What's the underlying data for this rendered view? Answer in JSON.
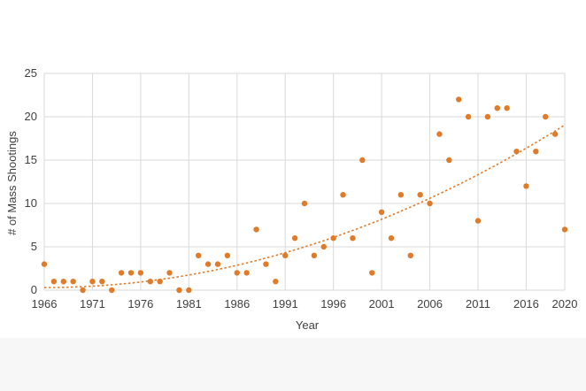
{
  "chart_data": {
    "type": "scatter",
    "title": "",
    "xlabel": "Year",
    "ylabel": "# of Mass Shootings",
    "xlim": [
      1966,
      2020
    ],
    "ylim": [
      0,
      25
    ],
    "x_ticks": [
      1966,
      1971,
      1976,
      1981,
      1986,
      1991,
      1996,
      2001,
      2006,
      2011,
      2016,
      2020
    ],
    "y_ticks": [
      0,
      5,
      10,
      15,
      20,
      25
    ],
    "grid": true,
    "legend": "none",
    "point_color": "#e07b2a",
    "trendline": {
      "type": "polynomial",
      "style": "dotted",
      "color": "#e07b2a",
      "coefficients": [
        0.3,
        0.0,
        0.00643
      ]
    },
    "points": [
      {
        "x": 1966,
        "y": 3
      },
      {
        "x": 1967,
        "y": 1
      },
      {
        "x": 1968,
        "y": 1
      },
      {
        "x": 1969,
        "y": 1
      },
      {
        "x": 1970,
        "y": 0
      },
      {
        "x": 1971,
        "y": 1
      },
      {
        "x": 1972,
        "y": 1
      },
      {
        "x": 1973,
        "y": 0
      },
      {
        "x": 1974,
        "y": 2
      },
      {
        "x": 1975,
        "y": 2
      },
      {
        "x": 1976,
        "y": 2
      },
      {
        "x": 1977,
        "y": 1
      },
      {
        "x": 1978,
        "y": 1
      },
      {
        "x": 1979,
        "y": 2
      },
      {
        "x": 1980,
        "y": 0
      },
      {
        "x": 1981,
        "y": 0
      },
      {
        "x": 1982,
        "y": 4
      },
      {
        "x": 1983,
        "y": 3
      },
      {
        "x": 1984,
        "y": 3
      },
      {
        "x": 1985,
        "y": 4
      },
      {
        "x": 1986,
        "y": 2
      },
      {
        "x": 1987,
        "y": 2
      },
      {
        "x": 1988,
        "y": 7
      },
      {
        "x": 1989,
        "y": 3
      },
      {
        "x": 1990,
        "y": 1
      },
      {
        "x": 1991,
        "y": 4
      },
      {
        "x": 1992,
        "y": 6
      },
      {
        "x": 1993,
        "y": 10
      },
      {
        "x": 1994,
        "y": 4
      },
      {
        "x": 1995,
        "y": 5
      },
      {
        "x": 1996,
        "y": 6
      },
      {
        "x": 1997,
        "y": 11
      },
      {
        "x": 1998,
        "y": 6
      },
      {
        "x": 1999,
        "y": 15
      },
      {
        "x": 2000,
        "y": 2
      },
      {
        "x": 2001,
        "y": 9
      },
      {
        "x": 2002,
        "y": 6
      },
      {
        "x": 2003,
        "y": 11
      },
      {
        "x": 2004,
        "y": 4
      },
      {
        "x": 2005,
        "y": 11
      },
      {
        "x": 2006,
        "y": 10
      },
      {
        "x": 2007,
        "y": 18
      },
      {
        "x": 2008,
        "y": 15
      },
      {
        "x": 2009,
        "y": 22
      },
      {
        "x": 2010,
        "y": 20
      },
      {
        "x": 2011,
        "y": 8
      },
      {
        "x": 2012,
        "y": 20
      },
      {
        "x": 2013,
        "y": 21
      },
      {
        "x": 2014,
        "y": 21
      },
      {
        "x": 2015,
        "y": 16
      },
      {
        "x": 2016,
        "y": 12
      },
      {
        "x": 2017,
        "y": 16
      },
      {
        "x": 2018,
        "y": 20
      },
      {
        "x": 2019,
        "y": 18
      },
      {
        "x": 2020,
        "y": 7
      }
    ]
  }
}
